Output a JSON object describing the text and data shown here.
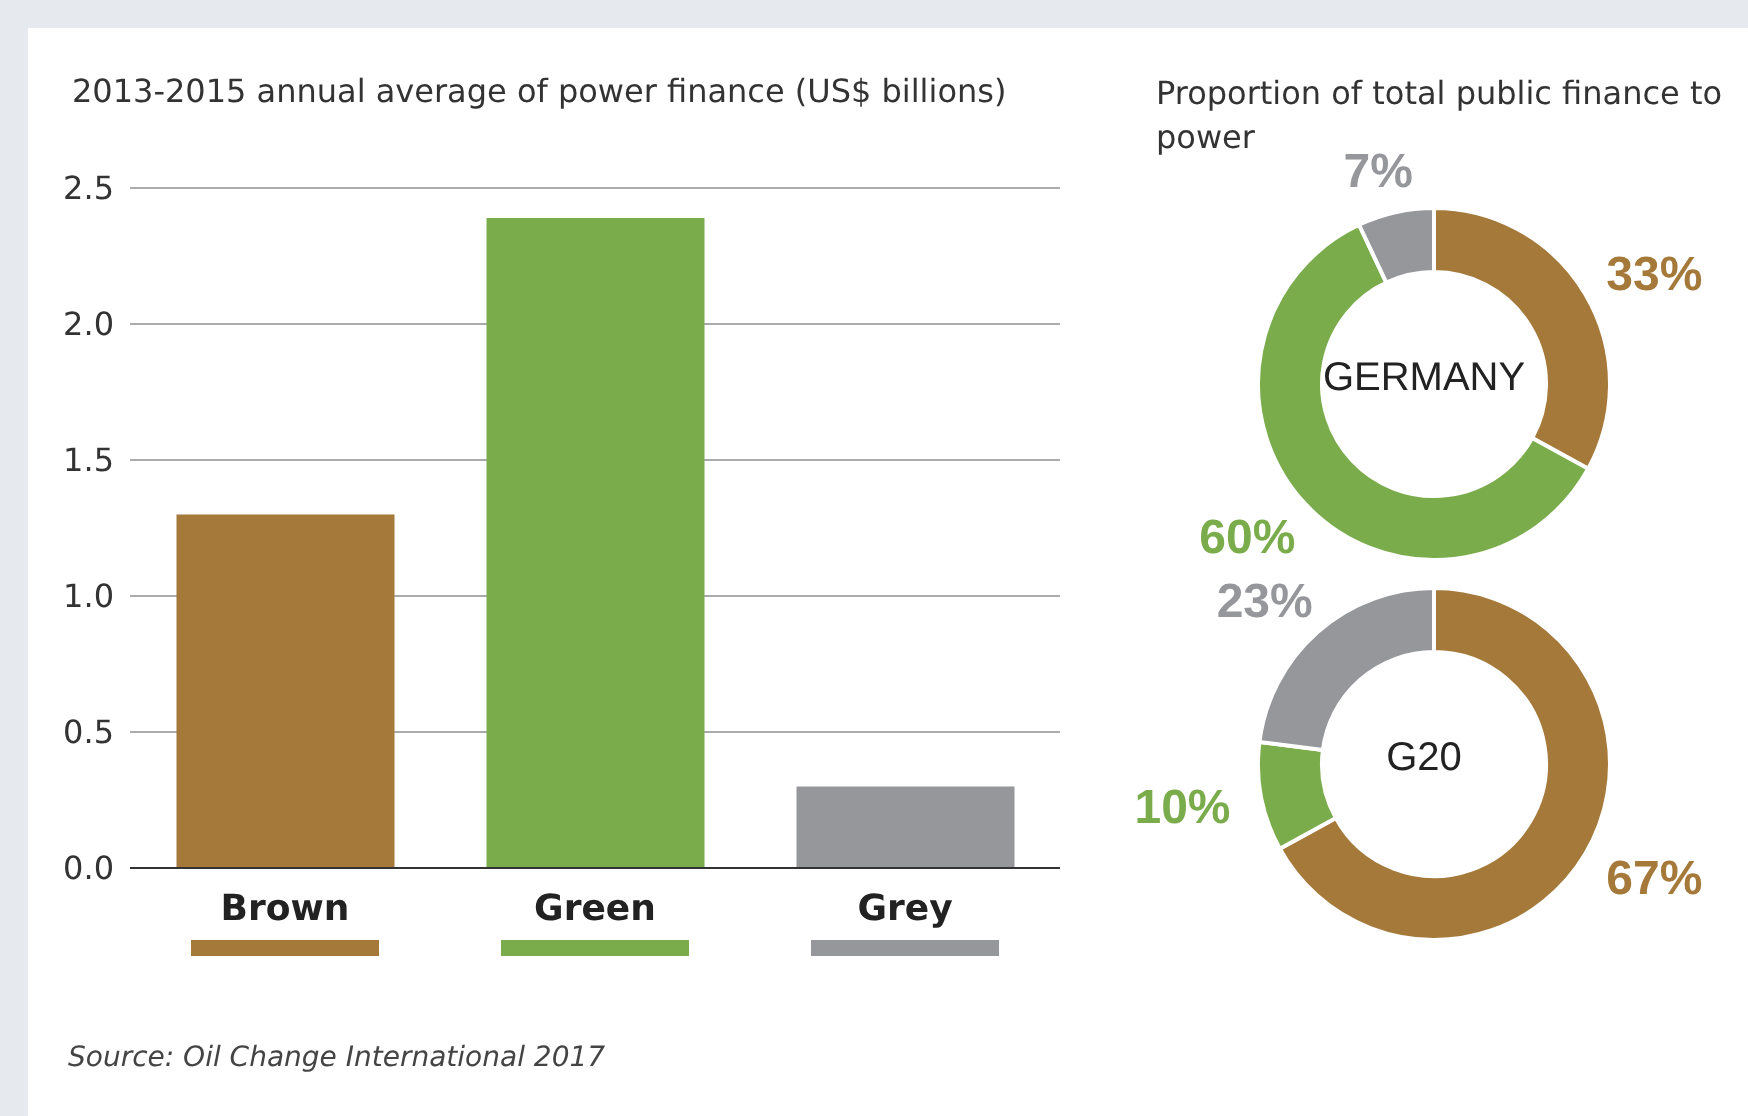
{
  "chart_data": [
    {
      "type": "bar",
      "title": "2013-2015 annual average of power finance (US$ billions)",
      "categories": [
        "Brown",
        "Green",
        "Grey"
      ],
      "values": [
        1.3,
        2.39,
        0.3
      ],
      "colors": [
        "#a5793a",
        "#7aac4c",
        "#96979b"
      ],
      "ylim": [
        0,
        2.5
      ],
      "yticks": [
        {
          "value": 0,
          "label": "0.0"
        },
        {
          "value": 0.5,
          "label": "0.5"
        },
        {
          "value": 1,
          "label": "1.0"
        },
        {
          "value": 1.5,
          "label": "1.5"
        },
        {
          "value": 2,
          "label": "2.0"
        },
        {
          "value": 2.5,
          "label": "2.5"
        }
      ],
      "grid": "y",
      "annotations": [
        "Source: Oil Change International 2017"
      ]
    },
    {
      "type": "donut",
      "title": "Proportion of total public finance to power",
      "subtitle": "GERMANY",
      "categories": [
        null,
        null,
        null
      ],
      "values": [
        33,
        60,
        7
      ],
      "colors": [
        "#a5793a",
        "#7aac4c",
        "#96979b"
      ],
      "value_labels": [
        "33%",
        "60%",
        "7%"
      ]
    },
    {
      "type": "donut",
      "subtitle": "G20",
      "categories": [
        null,
        null,
        null
      ],
      "values": [
        67,
        10,
        23
      ],
      "colors": [
        "#a5793a",
        "#7aac4c",
        "#96979b"
      ],
      "value_labels": [
        "67%",
        "10%",
        "23%"
      ]
    }
  ]
}
